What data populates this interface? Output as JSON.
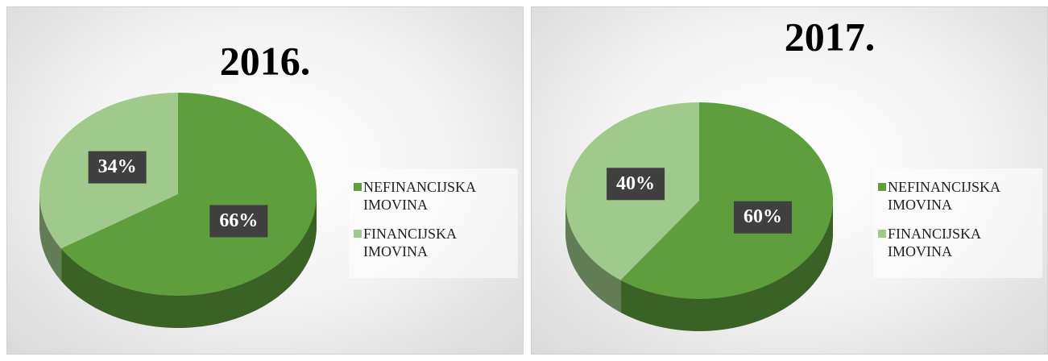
{
  "chart_data": [
    {
      "type": "pie",
      "title": "2016.",
      "categories": [
        "NEFINANCIJSKA IMOVINA",
        "FINANCIJSKA IMOVINA"
      ],
      "values": [
        66,
        34
      ],
      "value_labels": [
        "66%",
        "34%"
      ],
      "colors": [
        "#5f9e3c",
        "#a0c98c"
      ],
      "legend": "right"
    },
    {
      "type": "pie",
      "title": "2017.",
      "categories": [
        "NEFINANCIJSKA IMOVINA",
        "FINANCIJSKA IMOVINA"
      ],
      "values": [
        60,
        40
      ],
      "value_labels": [
        "60%",
        "40%"
      ],
      "colors": [
        "#5f9e3c",
        "#a0c98c"
      ],
      "legend": "right"
    }
  ]
}
